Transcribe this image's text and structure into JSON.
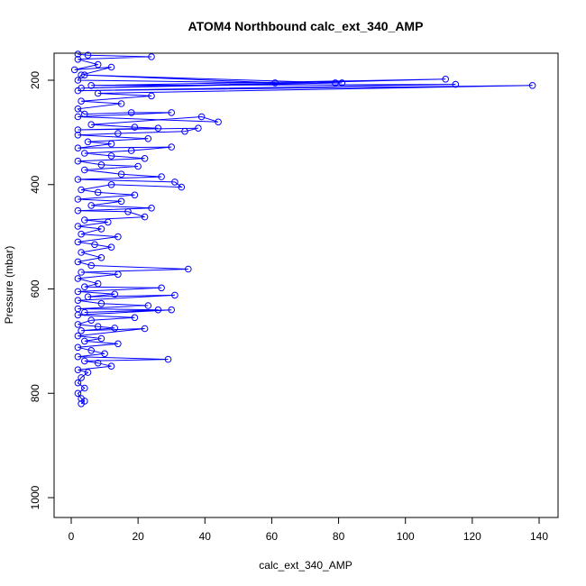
{
  "chart_data": {
    "type": "line",
    "title": "ATOM4 Northbound calc_ext_340_AMP",
    "xlabel": "calc_ext_340_AMP",
    "ylabel": "Pressure (mbar)",
    "xlim": [
      0,
      140
    ],
    "ylim": [
      1030,
      150
    ],
    "y_reversed": true,
    "x_ticks": [
      0,
      20,
      40,
      60,
      80,
      100,
      120,
      140
    ],
    "y_ticks": [
      200,
      400,
      600,
      800,
      1000
    ],
    "grid": false,
    "legend": "none",
    "series_color": "#0000ff",
    "marker": "open-circle",
    "series": [
      {
        "values": [
          [
            2,
            150
          ],
          [
            5,
            152
          ],
          [
            24,
            155
          ],
          [
            2,
            160
          ],
          [
            8,
            170
          ],
          [
            1,
            180
          ],
          [
            12,
            175
          ],
          [
            3,
            190
          ],
          [
            2,
            200
          ],
          [
            61,
            205
          ],
          [
            4,
            190
          ],
          [
            79,
            205
          ],
          [
            81,
            205
          ],
          [
            3,
            215
          ],
          [
            112,
            198
          ],
          [
            6,
            210
          ],
          [
            115,
            208
          ],
          [
            2,
            220
          ],
          [
            138,
            210
          ],
          [
            8,
            225
          ],
          [
            24,
            230
          ],
          [
            3,
            240
          ],
          [
            15,
            245
          ],
          [
            2,
            255
          ],
          [
            4,
            265
          ],
          [
            18,
            262
          ],
          [
            30,
            262
          ],
          [
            2,
            270
          ],
          [
            44,
            280
          ],
          [
            39,
            270
          ],
          [
            6,
            285
          ],
          [
            19,
            290
          ],
          [
            26,
            292
          ],
          [
            2,
            295
          ],
          [
            38,
            292
          ],
          [
            34,
            298
          ],
          [
            14,
            302
          ],
          [
            2,
            305
          ],
          [
            23,
            312
          ],
          [
            5,
            318
          ],
          [
            12,
            322
          ],
          [
            2,
            330
          ],
          [
            30,
            328
          ],
          [
            18,
            335
          ],
          [
            4,
            340
          ],
          [
            12,
            345
          ],
          [
            22,
            350
          ],
          [
            2,
            355
          ],
          [
            9,
            362
          ],
          [
            20,
            365
          ],
          [
            4,
            372
          ],
          [
            15,
            380
          ],
          [
            27,
            385
          ],
          [
            2,
            390
          ],
          [
            31,
            395
          ],
          [
            33,
            405
          ],
          [
            12,
            400
          ],
          [
            3,
            410
          ],
          [
            8,
            415
          ],
          [
            19,
            420
          ],
          [
            2,
            428
          ],
          [
            15,
            432
          ],
          [
            6,
            440
          ],
          [
            24,
            445
          ],
          [
            2,
            450
          ],
          [
            17,
            452
          ],
          [
            22,
            462
          ],
          [
            4,
            468
          ],
          [
            11,
            472
          ],
          [
            2,
            480
          ],
          [
            9,
            485
          ],
          [
            3,
            495
          ],
          [
            14,
            500
          ],
          [
            2,
            510
          ],
          [
            7,
            515
          ],
          [
            12,
            520
          ],
          [
            3,
            530
          ],
          [
            9,
            540
          ],
          [
            2,
            548
          ],
          [
            6,
            555
          ],
          [
            35,
            562
          ],
          [
            3,
            568
          ],
          [
            14,
            572
          ],
          [
            2,
            580
          ],
          [
            8,
            590
          ],
          [
            4,
            596
          ],
          [
            27,
            598
          ],
          [
            2,
            605
          ],
          [
            13,
            610
          ],
          [
            5,
            615
          ],
          [
            31,
            612
          ],
          [
            2,
            622
          ],
          [
            9,
            628
          ],
          [
            23,
            632
          ],
          [
            2,
            638
          ],
          [
            26,
            640
          ],
          [
            4,
            645
          ],
          [
            30,
            640
          ],
          [
            2,
            650
          ],
          [
            19,
            655
          ],
          [
            6,
            660
          ],
          [
            2,
            668
          ],
          [
            8,
            672
          ],
          [
            13,
            675
          ],
          [
            3,
            680
          ],
          [
            22,
            676
          ],
          [
            2,
            690
          ],
          [
            9,
            695
          ],
          [
            4,
            700
          ],
          [
            14,
            705
          ],
          [
            2,
            712
          ],
          [
            6,
            718
          ],
          [
            10,
            724
          ],
          [
            2,
            730
          ],
          [
            29,
            735
          ],
          [
            4,
            738
          ],
          [
            8,
            742
          ],
          [
            12,
            748
          ],
          [
            2,
            755
          ],
          [
            5,
            760
          ],
          [
            3,
            770
          ],
          [
            2,
            780
          ],
          [
            4,
            790
          ],
          [
            2,
            800
          ],
          [
            3,
            810
          ],
          [
            4,
            815
          ],
          [
            3,
            820
          ]
        ]
      }
    ]
  }
}
